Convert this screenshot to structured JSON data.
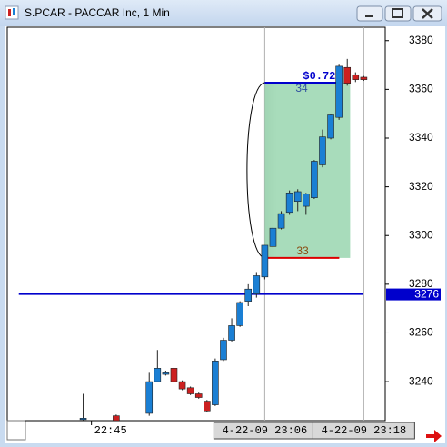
{
  "window": {
    "title": "S.PCAR - PACCAR Inc, 1 Min"
  },
  "chart_data": {
    "type": "candlestick",
    "x": [
      1364,
      1368,
      1372,
      1373,
      1374,
      1375,
      1376,
      1377,
      1378,
      1379,
      1380,
      1381,
      1382,
      1383,
      1384,
      1385,
      1386,
      1387,
      1388,
      1389,
      1390,
      1391,
      1392,
      1393,
      1394,
      1395,
      1396,
      1397,
      1398
    ],
    "open": [
      3224.5,
      3226,
      3227,
      3240,
      3243,
      3245.5,
      3240,
      3237.5,
      3235,
      3232,
      3230.5,
      3249,
      3257,
      3263,
      3273,
      3276,
      3283,
      3295.5,
      3303,
      3309.5,
      3314,
      3312,
      3315.5,
      3329,
      3340,
      3348.5,
      3369,
      3366,
      3365
    ],
    "high": [
      3235,
      3226.5,
      3244,
      3253,
      3244.5,
      3246,
      3240.5,
      3238,
      3235.5,
      3232.5,
      3249.5,
      3258,
      3266,
      3273,
      3280,
      3285,
      3296,
      3303.5,
      3310,
      3318.5,
      3319,
      3317.5,
      3331,
      3343.5,
      3350,
      3370.5,
      3372.5,
      3367,
      3365.5
    ],
    "low": [
      3222,
      3222,
      3226,
      3240,
      3242.5,
      3239.5,
      3236.5,
      3234.5,
      3233,
      3227.5,
      3230,
      3248.5,
      3256.5,
      3262.5,
      3271,
      3274.5,
      3282,
      3295,
      3302.5,
      3308.5,
      3310,
      3308.5,
      3315,
      3328,
      3339.5,
      3347.5,
      3361.5,
      3363,
      3363.5
    ],
    "close": [
      3225,
      3224,
      3240,
      3245.5,
      3244,
      3240,
      3237,
      3235,
      3233.5,
      3228,
      3248.5,
      3257,
      3263,
      3272.5,
      3278,
      3283.5,
      3296,
      3303,
      3309,
      3317.5,
      3318,
      3317,
      3330.5,
      3340.5,
      3349.5,
      3369.5,
      3362.5,
      3364,
      3364
    ],
    "up_color": "#1a7fd4",
    "down_color": "#cc2020",
    "xlim": [
      1354.8,
      1400.6
    ],
    "ylim": [
      3224,
      3385.5
    ],
    "yticks": [
      3240,
      3260,
      3280,
      3300,
      3320,
      3340,
      3360,
      3380
    ],
    "xticks": [
      {
        "value": 1365,
        "label": "22:45",
        "highlight": false
      },
      {
        "value": 1386,
        "label": "4-22-09 23:06",
        "highlight": true
      },
      {
        "value": 1398,
        "label": "4-22-09 23:18",
        "highlight": true
      }
    ],
    "level_line": {
      "value": 3276,
      "x": [
        1356.2,
        1397.9
      ],
      "color": "#0000cc"
    },
    "trade": {
      "x": [
        1386,
        1396.35
      ],
      "entry": 3290.8,
      "exit": 3362.75,
      "profit_label": "$0.72",
      "exit_qty": 34,
      "entry_qty": 33,
      "fill": "#9ed8b4",
      "entry_color": "#dd0000",
      "exit_color": "#0000cc"
    }
  }
}
